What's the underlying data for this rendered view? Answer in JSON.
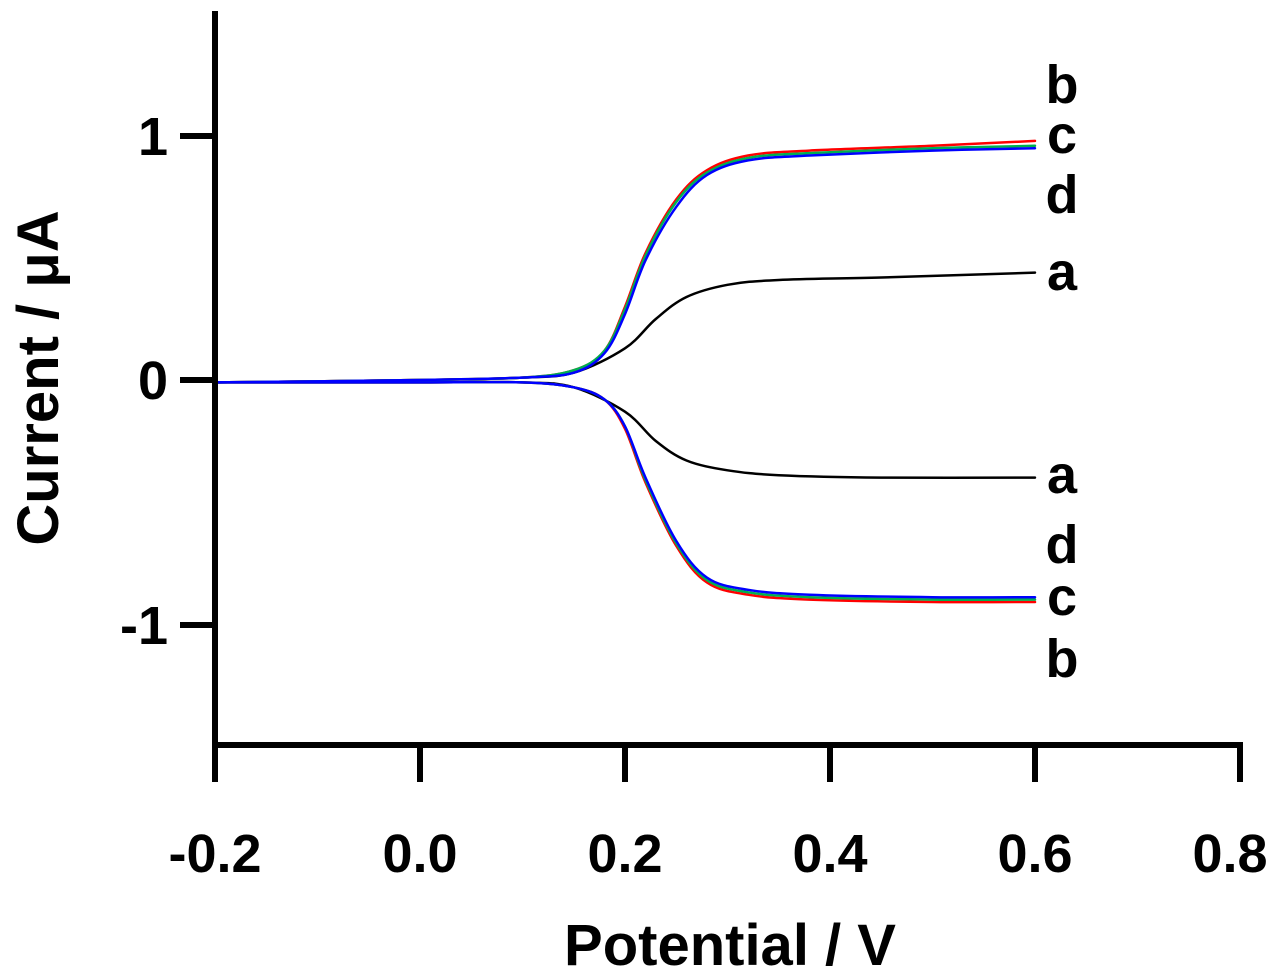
{
  "chart_data": {
    "type": "line",
    "xlabel": "Potential / V",
    "ylabel": "Current / μA",
    "xlim": [
      -0.2,
      0.8
    ],
    "ylim": [
      -1.5,
      1.5
    ],
    "xticks": [
      -0.2,
      0.0,
      0.2,
      0.4,
      0.6,
      0.8
    ],
    "xtick_labels": [
      "-0.2",
      "0.0",
      "0.2",
      "0.4",
      "0.6",
      "0.8"
    ],
    "yticks": [
      -1,
      0,
      1
    ],
    "ytick_labels": [
      "-1",
      "0",
      "1"
    ],
    "grid": false,
    "legend": "none",
    "series": [
      {
        "name": "a",
        "color": "#000000",
        "anodic": {
          "x": [
            -0.2,
            0.0,
            0.1,
            0.15,
            0.2,
            0.23,
            0.26,
            0.3,
            0.35,
            0.45,
            0.6
          ],
          "y": [
            -0.01,
            0.0,
            0.01,
            0.03,
            0.13,
            0.25,
            0.34,
            0.39,
            0.41,
            0.42,
            0.44
          ]
        },
        "cathodic": {
          "x": [
            -0.2,
            0.0,
            0.1,
            0.15,
            0.2,
            0.23,
            0.26,
            0.3,
            0.35,
            0.45,
            0.6
          ],
          "y": [
            -0.01,
            -0.01,
            -0.01,
            -0.03,
            -0.13,
            -0.25,
            -0.33,
            -0.37,
            -0.39,
            -0.4,
            -0.4
          ]
        }
      },
      {
        "name": "b",
        "color": "#ff0000",
        "anodic": {
          "x": [
            -0.2,
            0.0,
            0.1,
            0.15,
            0.18,
            0.2,
            0.22,
            0.25,
            0.28,
            0.32,
            0.38,
            0.5,
            0.6
          ],
          "y": [
            -0.01,
            0.0,
            0.01,
            0.04,
            0.12,
            0.3,
            0.52,
            0.74,
            0.86,
            0.92,
            0.94,
            0.96,
            0.98
          ]
        },
        "cathodic": {
          "x": [
            -0.2,
            0.0,
            0.1,
            0.15,
            0.18,
            0.2,
            0.22,
            0.25,
            0.28,
            0.32,
            0.38,
            0.5,
            0.6
          ],
          "y": [
            -0.01,
            -0.01,
            -0.01,
            -0.03,
            -0.08,
            -0.2,
            -0.42,
            -0.68,
            -0.83,
            -0.88,
            -0.9,
            -0.91,
            -0.91
          ]
        }
      },
      {
        "name": "c",
        "color": "#00b050",
        "anodic": {
          "x": [
            -0.2,
            0.0,
            0.1,
            0.15,
            0.18,
            0.2,
            0.22,
            0.25,
            0.28,
            0.32,
            0.38,
            0.5,
            0.6
          ],
          "y": [
            -0.01,
            0.0,
            0.01,
            0.04,
            0.12,
            0.29,
            0.51,
            0.73,
            0.85,
            0.91,
            0.93,
            0.95,
            0.96
          ]
        },
        "cathodic": {
          "x": [
            -0.2,
            0.0,
            0.1,
            0.15,
            0.18,
            0.2,
            0.22,
            0.25,
            0.28,
            0.32,
            0.38,
            0.5,
            0.6
          ],
          "y": [
            -0.01,
            -0.01,
            -0.01,
            -0.03,
            -0.08,
            -0.19,
            -0.41,
            -0.67,
            -0.82,
            -0.87,
            -0.89,
            -0.9,
            -0.9
          ]
        }
      },
      {
        "name": "d",
        "color": "#0000ff",
        "anodic": {
          "x": [
            -0.2,
            0.0,
            0.1,
            0.15,
            0.18,
            0.2,
            0.22,
            0.25,
            0.28,
            0.32,
            0.38,
            0.5,
            0.6
          ],
          "y": [
            -0.01,
            0.0,
            0.01,
            0.03,
            0.11,
            0.27,
            0.49,
            0.71,
            0.84,
            0.9,
            0.92,
            0.94,
            0.95
          ]
        },
        "cathodic": {
          "x": [
            -0.2,
            0.0,
            0.1,
            0.15,
            0.18,
            0.2,
            0.22,
            0.25,
            0.28,
            0.32,
            0.38,
            0.5,
            0.6
          ],
          "y": [
            -0.01,
            -0.01,
            -0.01,
            -0.03,
            -0.08,
            -0.19,
            -0.4,
            -0.66,
            -0.81,
            -0.86,
            -0.88,
            -0.89,
            -0.89
          ]
        }
      }
    ],
    "curve_labels": {
      "upper": [
        "b",
        "c",
        "d",
        "a"
      ],
      "lower": [
        "a",
        "d",
        "c",
        "b"
      ]
    }
  }
}
